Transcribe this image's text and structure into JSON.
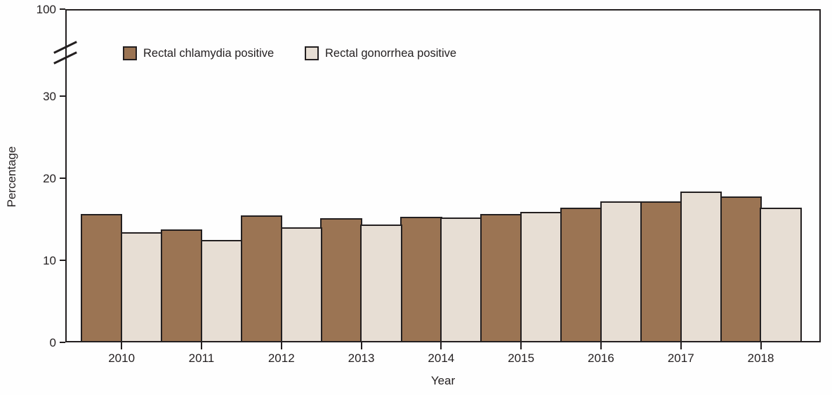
{
  "figure": {
    "background": "#fefefe",
    "frame_color": "#231f20",
    "text_color": "#231f20"
  },
  "legend": {
    "items": [
      {
        "label": "Rectal chlamydia positive",
        "color": "#9b7453"
      },
      {
        "label": "Rectal gonorrhea positive",
        "color": "#e7ded4"
      }
    ]
  },
  "chart_data": {
    "type": "bar",
    "title": "",
    "categories": [
      "2010",
      "2011",
      "2012",
      "2013",
      "2014",
      "2015",
      "2016",
      "2017",
      "2018"
    ],
    "series": [
      {
        "name": "Rectal chlamydia positive",
        "color": "#9b7453",
        "values": [
          15.6,
          13.8,
          15.5,
          15.1,
          15.3,
          15.6,
          16.4,
          17.2,
          17.8
        ]
      },
      {
        "name": "Rectal gonorrhea positive",
        "color": "#e7ded4",
        "values": [
          13.4,
          12.5,
          14.0,
          14.4,
          15.2,
          15.9,
          17.2,
          18.4,
          16.4
        ]
      }
    ],
    "xlabel": "Year",
    "ylabel": "Percentage",
    "y_ticks": [
      0,
      10,
      20,
      30,
      100
    ],
    "ylim": [
      0,
      100
    ],
    "axis_break": {
      "between": [
        30,
        100
      ]
    },
    "grid": false,
    "legend_position": "top-left-inside",
    "bar_outline_color": "#231f20"
  }
}
